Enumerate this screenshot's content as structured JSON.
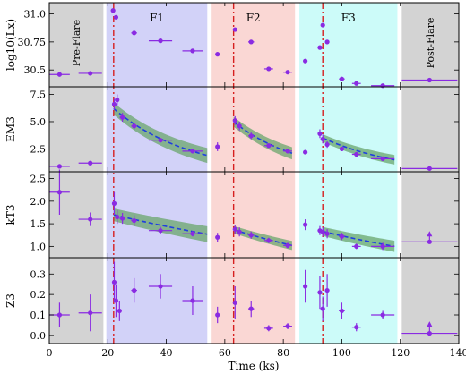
{
  "chart_data": {
    "type": "scatter",
    "xlabel": "Time (ks)",
    "xlim": [
      0,
      140
    ],
    "xticks": [
      0,
      20,
      40,
      60,
      80,
      100,
      120,
      140
    ],
    "regions": [
      {
        "label": "Pre-Flare",
        "x0": 0,
        "x1": 18.5,
        "color": "#d3d3d3",
        "vertical": true
      },
      {
        "label": "F1",
        "x0": 19.5,
        "x1": 54,
        "color": "#d2d2f8",
        "vertical": false
      },
      {
        "label": "F2",
        "x0": 55.5,
        "x1": 84,
        "color": "#fad7d4",
        "vertical": false
      },
      {
        "label": "F3",
        "x0": 85.5,
        "x1": 119,
        "color": "#ccfbf9",
        "vertical": false
      },
      {
        "label": "Post-Flare",
        "x0": 120.5,
        "x1": 140,
        "color": "#d3d3d3",
        "vertical": true
      }
    ],
    "flare_peaks": [
      22,
      63,
      93.5
    ],
    "panels": [
      {
        "ylabel": "log10(Lx)",
        "ylim": [
          30.35,
          31.1
        ],
        "yticks": [
          30.5,
          30.75,
          31.0
        ],
        "yticklabels": [
          "30.5",
          "30.75",
          "31.0"
        ],
        "points": [
          {
            "x": 3.5,
            "xe": 3.5,
            "y": 30.46
          },
          {
            "x": 14,
            "xe": 4,
            "y": 30.47
          },
          {
            "x": 21.8,
            "xe": 0.4,
            "y": 31.03
          },
          {
            "x": 22.8,
            "xe": 0.4,
            "y": 30.97
          },
          {
            "x": 29,
            "xe": 1,
            "y": 30.83
          },
          {
            "x": 38,
            "xe": 4,
            "y": 30.76
          },
          {
            "x": 49,
            "xe": 3.5,
            "y": 30.67
          },
          {
            "x": 57.5,
            "xe": 0.5,
            "y": 30.64
          },
          {
            "x": 63.5,
            "xe": 0.5,
            "y": 30.86
          },
          {
            "x": 69,
            "xe": 1,
            "y": 30.75
          },
          {
            "x": 75,
            "xe": 1.5,
            "y": 30.51
          },
          {
            "x": 81.5,
            "xe": 1.5,
            "y": 30.48
          },
          {
            "x": 87.5,
            "xe": 0.5,
            "y": 30.58
          },
          {
            "x": 92.5,
            "xe": 0.5,
            "y": 30.7
          },
          {
            "x": 93.5,
            "xe": 0.3,
            "y": 30.9
          },
          {
            "x": 95,
            "xe": 0.5,
            "y": 30.75
          },
          {
            "x": 100,
            "xe": 1,
            "y": 30.42
          },
          {
            "x": 105,
            "xe": 1.5,
            "y": 30.38
          },
          {
            "x": 114,
            "xe": 4,
            "y": 30.36
          },
          {
            "x": 130,
            "xe": 9.5,
            "y": 30.41
          }
        ],
        "fits": []
      },
      {
        "ylabel": "EM3",
        "ylim": [
          0.4,
          8.2
        ],
        "yticks": [
          2.5,
          5.0,
          7.5
        ],
        "yticklabels": [
          "2.5",
          "5.0",
          "7.5"
        ],
        "points": [
          {
            "x": 3.5,
            "xe": 3.5,
            "y": 0.9,
            "ye": 0.1
          },
          {
            "x": 14,
            "xe": 4,
            "y": 1.2,
            "ye": 0.1
          },
          {
            "x": 22.2,
            "xe": 0.4,
            "y": 6.6,
            "ye": 0.5
          },
          {
            "x": 23.2,
            "xe": 0.4,
            "y": 7.0,
            "ye": 0.5
          },
          {
            "x": 25,
            "xe": 1,
            "y": 5.4,
            "ye": 0.4
          },
          {
            "x": 29,
            "xe": 1,
            "y": 4.6,
            "ye": 0.3
          },
          {
            "x": 38,
            "xe": 4,
            "y": 3.3,
            "ye": 0.2
          },
          {
            "x": 49,
            "xe": 3.5,
            "y": 2.3,
            "ye": 0.2
          },
          {
            "x": 57.5,
            "xe": 0.5,
            "y": 2.7,
            "ye": 0.4
          },
          {
            "x": 63.5,
            "xe": 0.5,
            "y": 5.1,
            "ye": 0.4
          },
          {
            "x": 65,
            "xe": 0.5,
            "y": 4.6,
            "ye": 0.4
          },
          {
            "x": 69,
            "xe": 1,
            "y": 3.7,
            "ye": 0.3
          },
          {
            "x": 75,
            "xe": 1.5,
            "y": 2.8,
            "ye": 0.2
          },
          {
            "x": 81.5,
            "xe": 1.5,
            "y": 2.3,
            "ye": 0.2
          },
          {
            "x": 87.5,
            "xe": 0.5,
            "y": 2.2,
            "ye": 0.2
          },
          {
            "x": 92.5,
            "xe": 0.5,
            "y": 3.9,
            "ye": 0.4
          },
          {
            "x": 93.5,
            "xe": 0.3,
            "y": 3.4,
            "ye": 0.4
          },
          {
            "x": 95,
            "xe": 0.5,
            "y": 2.9,
            "ye": 0.3
          },
          {
            "x": 100,
            "xe": 1,
            "y": 2.5,
            "ye": 0.2
          },
          {
            "x": 105,
            "xe": 1.5,
            "y": 2.0,
            "ye": 0.2
          },
          {
            "x": 114,
            "xe": 4,
            "y": 1.6,
            "ye": 0.2
          },
          {
            "x": 130,
            "xe": 9.5,
            "y": 0.7,
            "ye": 0.1
          }
        ],
        "fits": [
          {
            "x0": 22,
            "x1": 54,
            "y0": 6.2,
            "y1": 1.9,
            "band": 0.55
          },
          {
            "x0": 63,
            "x1": 83,
            "y0": 5.0,
            "y1": 2.1,
            "band": 0.45
          },
          {
            "x0": 93.5,
            "x1": 118,
            "y0": 3.5,
            "y1": 1.5,
            "band": 0.35
          }
        ]
      },
      {
        "ylabel": "kT3",
        "ylim": [
          0.75,
          2.65
        ],
        "yticks": [
          1.0,
          1.5,
          2.0,
          2.5
        ],
        "yticklabels": [
          "1.0",
          "1.5",
          "2.0",
          "2.5"
        ],
        "points": [
          {
            "x": 3.5,
            "xe": 3.5,
            "y": 2.2,
            "ye": 0.5
          },
          {
            "x": 14,
            "xe": 4,
            "y": 1.6,
            "ye": 0.15
          },
          {
            "x": 22.2,
            "xe": 0.4,
            "y": 1.95,
            "ye": 0.25
          },
          {
            "x": 23.2,
            "xe": 0.4,
            "y": 1.65,
            "ye": 0.15
          },
          {
            "x": 25,
            "xe": 1,
            "y": 1.62,
            "ye": 0.12
          },
          {
            "x": 29,
            "xe": 1,
            "y": 1.57,
            "ye": 0.12
          },
          {
            "x": 38,
            "xe": 4,
            "y": 1.35,
            "ye": 0.08
          },
          {
            "x": 49,
            "xe": 3.5,
            "y": 1.28,
            "ye": 0.06
          },
          {
            "x": 57.5,
            "xe": 0.5,
            "y": 1.2,
            "ye": 0.1
          },
          {
            "x": 63.5,
            "xe": 0.5,
            "y": 1.38,
            "ye": 0.1
          },
          {
            "x": 65,
            "xe": 0.5,
            "y": 1.32,
            "ye": 0.1
          },
          {
            "x": 69,
            "xe": 1,
            "y": 1.25,
            "ye": 0.08
          },
          {
            "x": 75,
            "xe": 1.5,
            "y": 1.13,
            "ye": 0.06
          },
          {
            "x": 81.5,
            "xe": 1.5,
            "y": 1.02,
            "ye": 0.06
          },
          {
            "x": 87.5,
            "xe": 0.5,
            "y": 1.48,
            "ye": 0.12
          },
          {
            "x": 92.5,
            "xe": 0.5,
            "y": 1.35,
            "ye": 0.1
          },
          {
            "x": 93.5,
            "xe": 0.3,
            "y": 1.32,
            "ye": 0.1
          },
          {
            "x": 95,
            "xe": 0.5,
            "y": 1.28,
            "ye": 0.1
          },
          {
            "x": 100,
            "xe": 1,
            "y": 1.22,
            "ye": 0.08
          },
          {
            "x": 105,
            "xe": 1.5,
            "y": 1.0,
            "ye": 0.06
          },
          {
            "x": 114,
            "xe": 4,
            "y": 1.0,
            "ye": 0.08
          },
          {
            "x": 130,
            "xe": 9.5,
            "y": 1.1,
            "ye": 0.2,
            "lower_limit": true
          }
        ],
        "fits": [
          {
            "x0": 22,
            "x1": 54,
            "y0": 1.7,
            "y1": 1.27,
            "band": 0.14
          },
          {
            "x0": 63,
            "x1": 83,
            "y0": 1.37,
            "y1": 1.02,
            "band": 0.08
          },
          {
            "x0": 93.5,
            "x1": 118,
            "y0": 1.33,
            "y1": 1.0,
            "band": 0.1
          }
        ]
      },
      {
        "ylabel": "Z3",
        "ylim": [
          -0.04,
          0.38
        ],
        "yticks": [
          0.0,
          0.1,
          0.2,
          0.3
        ],
        "yticklabels": [
          "0.0",
          "0.1",
          "0.2",
          "0.3"
        ],
        "points": [
          {
            "x": 3.5,
            "xe": 3.5,
            "y": 0.1,
            "ye": 0.06
          },
          {
            "x": 14,
            "xe": 4,
            "y": 0.11,
            "ye": 0.09
          },
          {
            "x": 22.2,
            "xe": 0.4,
            "y": 0.26,
            "ye": 0.1
          },
          {
            "x": 22.8,
            "xe": 0.4,
            "y": 0.17,
            "ye": 0.08
          },
          {
            "x": 24,
            "xe": 0.5,
            "y": 0.12,
            "ye": 0.05
          },
          {
            "x": 29,
            "xe": 1,
            "y": 0.22,
            "ye": 0.06
          },
          {
            "x": 38,
            "xe": 4,
            "y": 0.24,
            "ye": 0.06
          },
          {
            "x": 49,
            "xe": 3.5,
            "y": 0.17,
            "ye": 0.07
          },
          {
            "x": 57.5,
            "xe": 0.5,
            "y": 0.1,
            "ye": 0.04
          },
          {
            "x": 63.5,
            "xe": 0.5,
            "y": 0.16,
            "ye": 0.08
          },
          {
            "x": 69,
            "xe": 1,
            "y": 0.13,
            "ye": 0.04
          },
          {
            "x": 75,
            "xe": 1.5,
            "y": 0.035,
            "ye": 0.015
          },
          {
            "x": 81.5,
            "xe": 1.5,
            "y": 0.045,
            "ye": 0.015
          },
          {
            "x": 87.5,
            "xe": 0.5,
            "y": 0.24,
            "ye": 0.08
          },
          {
            "x": 92.5,
            "xe": 0.5,
            "y": 0.21,
            "ye": 0.08
          },
          {
            "x": 93.5,
            "xe": 0.3,
            "y": 0.13,
            "ye": 0.06
          },
          {
            "x": 95,
            "xe": 0.5,
            "y": 0.22,
            "ye": 0.08
          },
          {
            "x": 100,
            "xe": 1,
            "y": 0.12,
            "ye": 0.04
          },
          {
            "x": 105,
            "xe": 1.5,
            "y": 0.04,
            "ye": 0.02
          },
          {
            "x": 114,
            "xe": 4,
            "y": 0.1,
            "ye": 0.02
          },
          {
            "x": 130,
            "xe": 9.5,
            "y": 0.01,
            "ye": 0.05,
            "lower_limit": true
          }
        ],
        "fits": []
      }
    ],
    "marker_color": "#8a2be2",
    "fit_band_color": "#6aa56c",
    "fit_line_color": "#1f3ee0",
    "peak_line_color": "#d61f1f"
  }
}
